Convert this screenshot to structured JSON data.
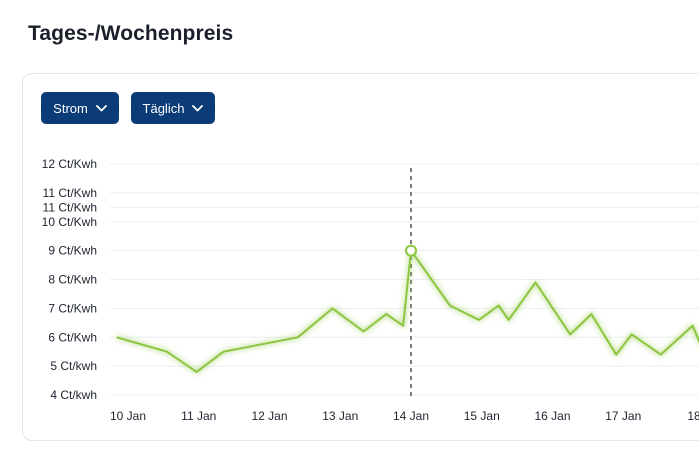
{
  "header": {
    "title": "Tages-/Wochenpreis"
  },
  "filters": {
    "energy_type": {
      "selected": "Strom",
      "icon": "chevron-down-icon"
    },
    "period": {
      "selected": "Täglich",
      "icon": "chevron-down-icon"
    }
  },
  "colors": {
    "button_bg": "#0b3c78",
    "line": "#8cc63f",
    "grid": "#eceef1"
  },
  "chart_data": {
    "type": "line",
    "title": "",
    "xlabel": "",
    "ylabel": "",
    "y_tick_labels": [
      "12 Ct/Kwh",
      "11 Ct/Kwh",
      "11 Ct/Kwh",
      "10 Ct/Kwh",
      "9 Ct/Kwh",
      "8 Ct/Kwh",
      "7 Ct/Kwh",
      "6 Ct/Kwh",
      "5 Ct/kwh",
      "4 Ct/kwh"
    ],
    "y_tick_values": [
      12,
      11,
      10.5,
      10,
      9,
      8,
      7,
      6,
      5,
      4
    ],
    "x_tick_labels": [
      "10 Jan",
      "11 Jan",
      "12 Jan",
      "13 Jan",
      "14 Jan",
      "15 Jan",
      "16 Jan",
      "17 Jan",
      "18"
    ],
    "x_tick_days": [
      10,
      11,
      12,
      13,
      14,
      15,
      16,
      17,
      18
    ],
    "xlim": [
      10,
      18
    ],
    "ylim": [
      4,
      12
    ],
    "grid": true,
    "marker": {
      "day": 14.0,
      "value": 9.0
    },
    "series": [
      {
        "x": [
          9.84,
          10.55,
          10.97,
          11.35,
          12.4,
          12.89,
          13.33,
          13.65,
          13.89,
          14.0,
          14.55,
          14.96,
          15.24,
          15.38,
          15.76,
          16.25,
          16.55,
          16.9,
          17.12,
          17.53,
          17.98,
          18.1
        ],
        "y": [
          6.0,
          5.5,
          4.8,
          5.5,
          6.0,
          7.0,
          6.2,
          6.8,
          6.4,
          9.0,
          7.1,
          6.6,
          7.1,
          6.6,
          7.9,
          6.1,
          6.8,
          5.4,
          6.1,
          5.4,
          6.4,
          5.7
        ]
      }
    ]
  }
}
